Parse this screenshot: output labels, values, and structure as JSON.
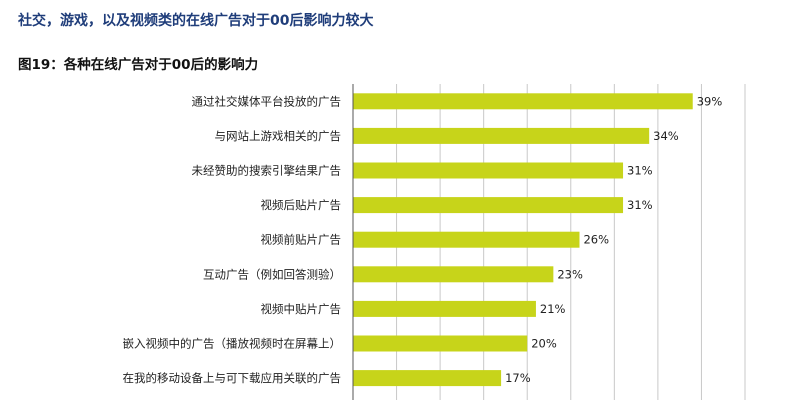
{
  "header": {
    "title": "社交，游戏，以及视频类的在线广告对于00后影响力较大"
  },
  "chart_data": {
    "type": "bar",
    "orientation": "horizontal",
    "title": "图19：各种在线广告对于00后的影响力",
    "categories": [
      "通过社交媒体平台投放的广告",
      "与网站上游戏相关的广告",
      "未经赞助的搜索引擎结果广告",
      "视频后贴片广告",
      "视频前贴片广告",
      "互动广告（例如回答测验）",
      "视频中贴片广告",
      "嵌入视频中的广告（播放视频时在屏幕上）",
      "在我的移动设备上与可下载应用关联的广告"
    ],
    "values": [
      39,
      34,
      31,
      31,
      26,
      23,
      21,
      20,
      17
    ],
    "value_labels": [
      "39%",
      "34%",
      "31%",
      "31%",
      "26%",
      "23%",
      "21%",
      "20%",
      "17%"
    ],
    "xlim": [
      0,
      45
    ],
    "grid": "vertical",
    "legend": "none",
    "colors": {
      "bar": "#c7d41a",
      "grid": "#c8c8c8",
      "axis": "#555555"
    }
  }
}
